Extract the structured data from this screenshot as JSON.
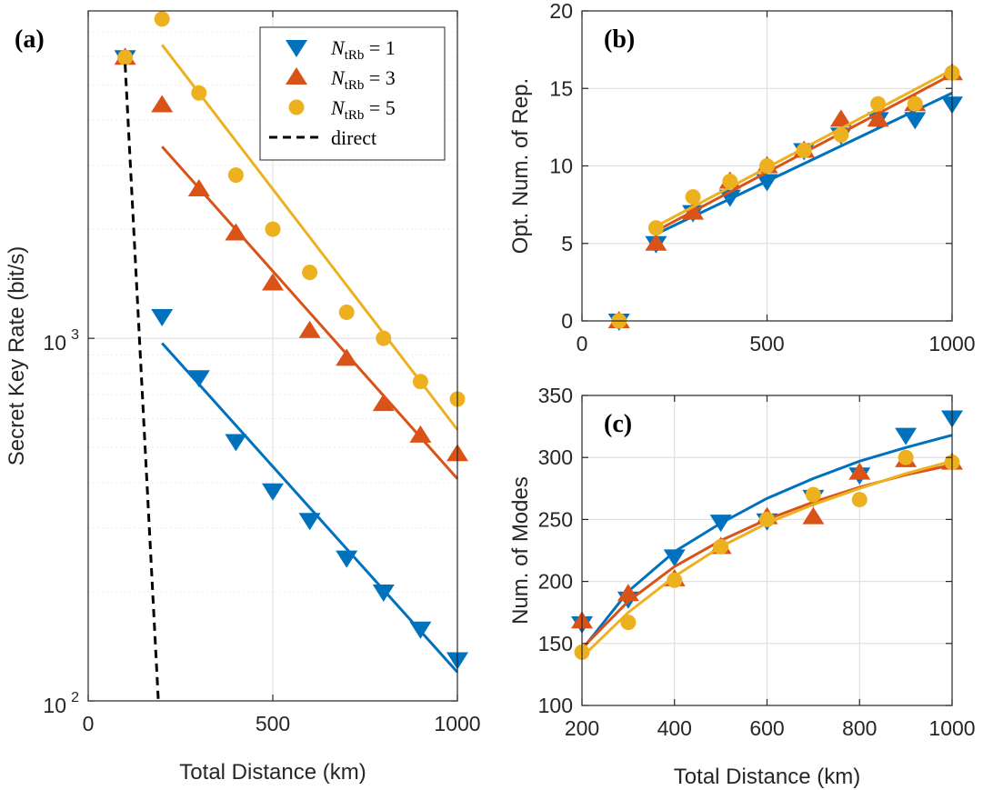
{
  "colors": {
    "n1": "#0072BD",
    "n3": "#D95319",
    "n5": "#EDB120",
    "direct": "#000000"
  },
  "chart_data": [
    {
      "id": "a",
      "type": "scatter",
      "panel_label": "(a)",
      "xlabel": "Total Distance (km)",
      "ylabel": "Secret Key Rate (bit/s)",
      "xlim": [
        0,
        1000
      ],
      "ylim": [
        100,
        8000
      ],
      "yscale": "log",
      "grid": true,
      "xticks": [
        0,
        500,
        1000
      ],
      "xtick_labels": [
        "0",
        "500",
        "1000"
      ],
      "ytick_labels": [
        {
          "value": 1000,
          "base": "10",
          "exp": "3"
        },
        {
          "value": 100,
          "base": "10",
          "exp": "2"
        }
      ],
      "legend": {
        "placement": "top-right",
        "entries": [
          {
            "key": "n1",
            "var": "N",
            "sub": "tRb",
            "rest": " = 1",
            "marker": "triangle-down"
          },
          {
            "key": "n3",
            "var": "N",
            "sub": "tRb",
            "rest": " = 3",
            "marker": "triangle-up"
          },
          {
            "key": "n5",
            "var": "N",
            "sub": "tRb",
            "rest": " = 5",
            "marker": "circle"
          },
          {
            "key": "direct",
            "label": "direct",
            "marker": "dashed-line"
          }
        ]
      },
      "series": [
        {
          "key": "n1",
          "marker": "triangle-down",
          "x": [
            100,
            200,
            300,
            400,
            500,
            600,
            700,
            800,
            900,
            1000
          ],
          "y": [
            5950,
            1150,
            780,
            520,
            380,
            315,
            248,
            200,
            158,
            130
          ],
          "fit_x": [
            200,
            1000
          ],
          "fit_y": [
            970,
            120
          ]
        },
        {
          "key": "n3",
          "marker": "triangle-up",
          "x": [
            100,
            200,
            300,
            400,
            500,
            600,
            700,
            800,
            900,
            1000
          ],
          "y": [
            5950,
            4400,
            2580,
            1950,
            1420,
            1050,
            880,
            660,
            540,
            480
          ],
          "fit_x": [
            200,
            1000
          ],
          "fit_y": [
            3380,
            410
          ]
        },
        {
          "key": "n5",
          "marker": "circle",
          "x": [
            100,
            200,
            300,
            400,
            500,
            600,
            700,
            800,
            900,
            1000
          ],
          "y": [
            5950,
            7600,
            4750,
            2820,
            2000,
            1520,
            1180,
            1000,
            760,
            680
          ],
          "fit_x": [
            200,
            1000
          ],
          "fit_y": [
            6450,
            560
          ]
        },
        {
          "key": "direct",
          "marker": "dashed-line",
          "fit_x": [
            100,
            190
          ],
          "fit_y": [
            5700,
            100
          ]
        }
      ]
    },
    {
      "id": "b",
      "type": "scatter",
      "panel_label": "(b)",
      "xlabel": "",
      "ylabel": "Opt. Num. of Rep.",
      "xlim": [
        0,
        1000
      ],
      "ylim": [
        0,
        20
      ],
      "grid": true,
      "xticks": [
        0,
        500,
        1000
      ],
      "xtick_labels": [
        "0",
        "500",
        "1000"
      ],
      "yticks": [
        0,
        5,
        10,
        15,
        20
      ],
      "ytick_labels": [
        "0",
        "5",
        "10",
        "15",
        "20"
      ],
      "series": [
        {
          "key": "n1",
          "marker": "triangle-down",
          "x": [
            100,
            200,
            300,
            400,
            500,
            600,
            700,
            800,
            900,
            1000
          ],
          "y": [
            0,
            5,
            7,
            8,
            9,
            11,
            12,
            13,
            13,
            14
          ],
          "fit_x": [
            200,
            1000
          ],
          "fit_y": [
            5.6,
            14.7
          ]
        },
        {
          "key": "n3",
          "marker": "triangle-up",
          "x": [
            100,
            200,
            300,
            400,
            500,
            600,
            700,
            800,
            900,
            1000
          ],
          "y": [
            0,
            5,
            7,
            9,
            10,
            11,
            13,
            13,
            14,
            16
          ],
          "fit_x": [
            200,
            1000
          ],
          "fit_y": [
            5.8,
            15.9
          ]
        },
        {
          "key": "n5",
          "marker": "circle",
          "x": [
            100,
            200,
            300,
            400,
            500,
            600,
            700,
            800,
            900,
            1000
          ],
          "y": [
            0,
            6,
            8,
            9,
            10,
            11,
            12,
            14,
            14,
            16
          ],
          "fit_x": [
            200,
            1000
          ],
          "fit_y": [
            6.1,
            16.2
          ]
        }
      ]
    },
    {
      "id": "c",
      "type": "scatter",
      "panel_label": "(c)",
      "xlabel": "Total Distance (km)",
      "ylabel": "Num. of Modes",
      "xlim": [
        200,
        1000
      ],
      "ylim": [
        100,
        350
      ],
      "grid": true,
      "xticks": [
        200,
        400,
        600,
        800,
        1000
      ],
      "xtick_labels": [
        "200",
        "400",
        "600",
        "800",
        "1000"
      ],
      "yticks": [
        100,
        150,
        200,
        250,
        300,
        350
      ],
      "ytick_labels": [
        "100",
        "150",
        "200",
        "250",
        "300",
        "350"
      ],
      "series": [
        {
          "key": "n1",
          "marker": "triangle-down",
          "x": [
            200,
            300,
            400,
            500,
            600,
            700,
            800,
            900,
            1000
          ],
          "y": [
            166,
            186,
            220,
            248,
            249,
            268,
            286,
            318,
            332
          ],
          "fit_x": [
            200,
            300,
            400,
            500,
            600,
            700,
            800,
            900,
            1000
          ],
          "fit_y": [
            145,
            192,
            224,
            247,
            267,
            283,
            297,
            308,
            318
          ]
        },
        {
          "key": "n3",
          "marker": "triangle-up",
          "x": [
            200,
            300,
            400,
            500,
            600,
            700,
            800,
            900,
            1000
          ],
          "y": [
            168,
            190,
            202,
            228,
            252,
            252,
            288,
            298,
            296
          ],
          "fit_x": [
            200,
            300,
            400,
            500,
            600,
            700,
            800,
            900,
            1000
          ],
          "fit_y": [
            146,
            184,
            212,
            233,
            250,
            264,
            276,
            286,
            294
          ]
        },
        {
          "key": "n5",
          "marker": "circle",
          "x": [
            200,
            300,
            400,
            500,
            600,
            700,
            800,
            900,
            1000
          ],
          "y": [
            143,
            167,
            201,
            228,
            250,
            270,
            266,
            300,
            296
          ],
          "fit_x": [
            200,
            300,
            400,
            500,
            600,
            700,
            800,
            900,
            1000
          ],
          "fit_y": [
            139,
            175,
            204,
            228,
            247,
            262,
            275,
            287,
            297
          ]
        }
      ]
    }
  ]
}
